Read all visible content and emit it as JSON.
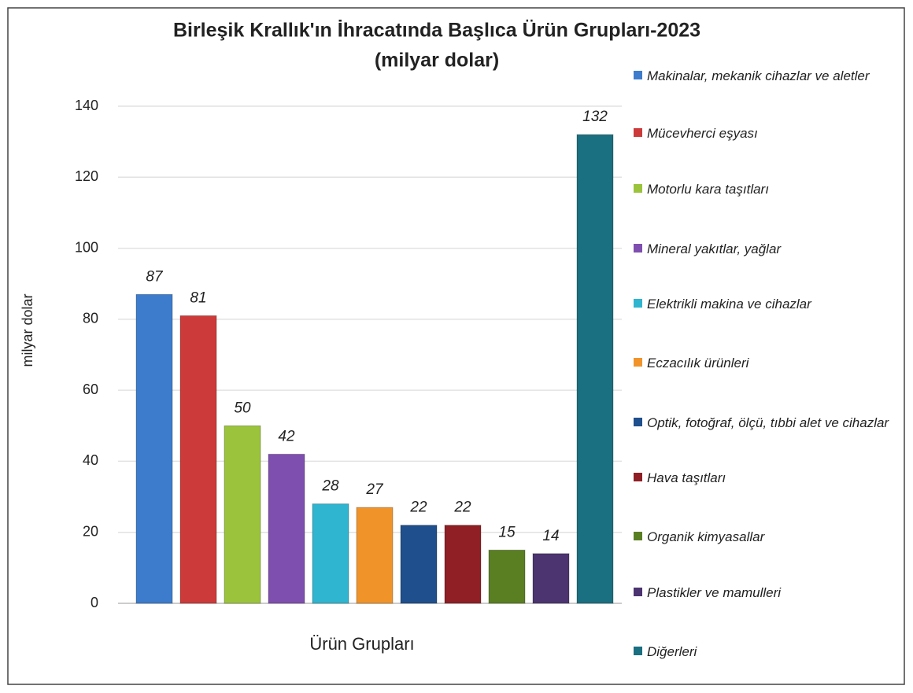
{
  "chart_data": {
    "type": "bar",
    "title": "Birleşik Krallık'ın İhracatında Başlıca Ürün Grupları-2023",
    "subtitle": "(milyar dolar)",
    "x_label": "Ürün Grupları",
    "y_label": "milyar dolar",
    "categories": [
      "Makinalar, mekanik cihazlar ve aletler",
      "Mücevherci eşyası",
      "Motorlu kara taşıtları",
      "Mineral yakıtlar, yağlar",
      "Elektrikli makina ve cihazlar",
      "Eczacılık ürünleri",
      "Optik, fotoğraf, ölçü, tıbbi alet ve cihazlar",
      "Hava taşıtları",
      "Organik kimyasallar",
      "Plastikler ve mamulleri",
      "Diğerleri"
    ],
    "values": [
      87,
      81,
      50,
      42,
      28,
      27,
      22,
      22,
      15,
      14,
      132
    ],
    "colors": [
      "#3d7ccc",
      "#cc3a3a",
      "#9bc33b",
      "#7f4fb0",
      "#2fb5cf",
      "#f0942a",
      "#1f4f8c",
      "#8f1f24",
      "#5a7f22",
      "#4c3470",
      "#1a6f80"
    ],
    "ylim": [
      0,
      140
    ],
    "yticks": [
      0,
      20,
      40,
      60,
      80,
      100,
      120,
      140
    ],
    "grid": true,
    "legend": "right"
  }
}
